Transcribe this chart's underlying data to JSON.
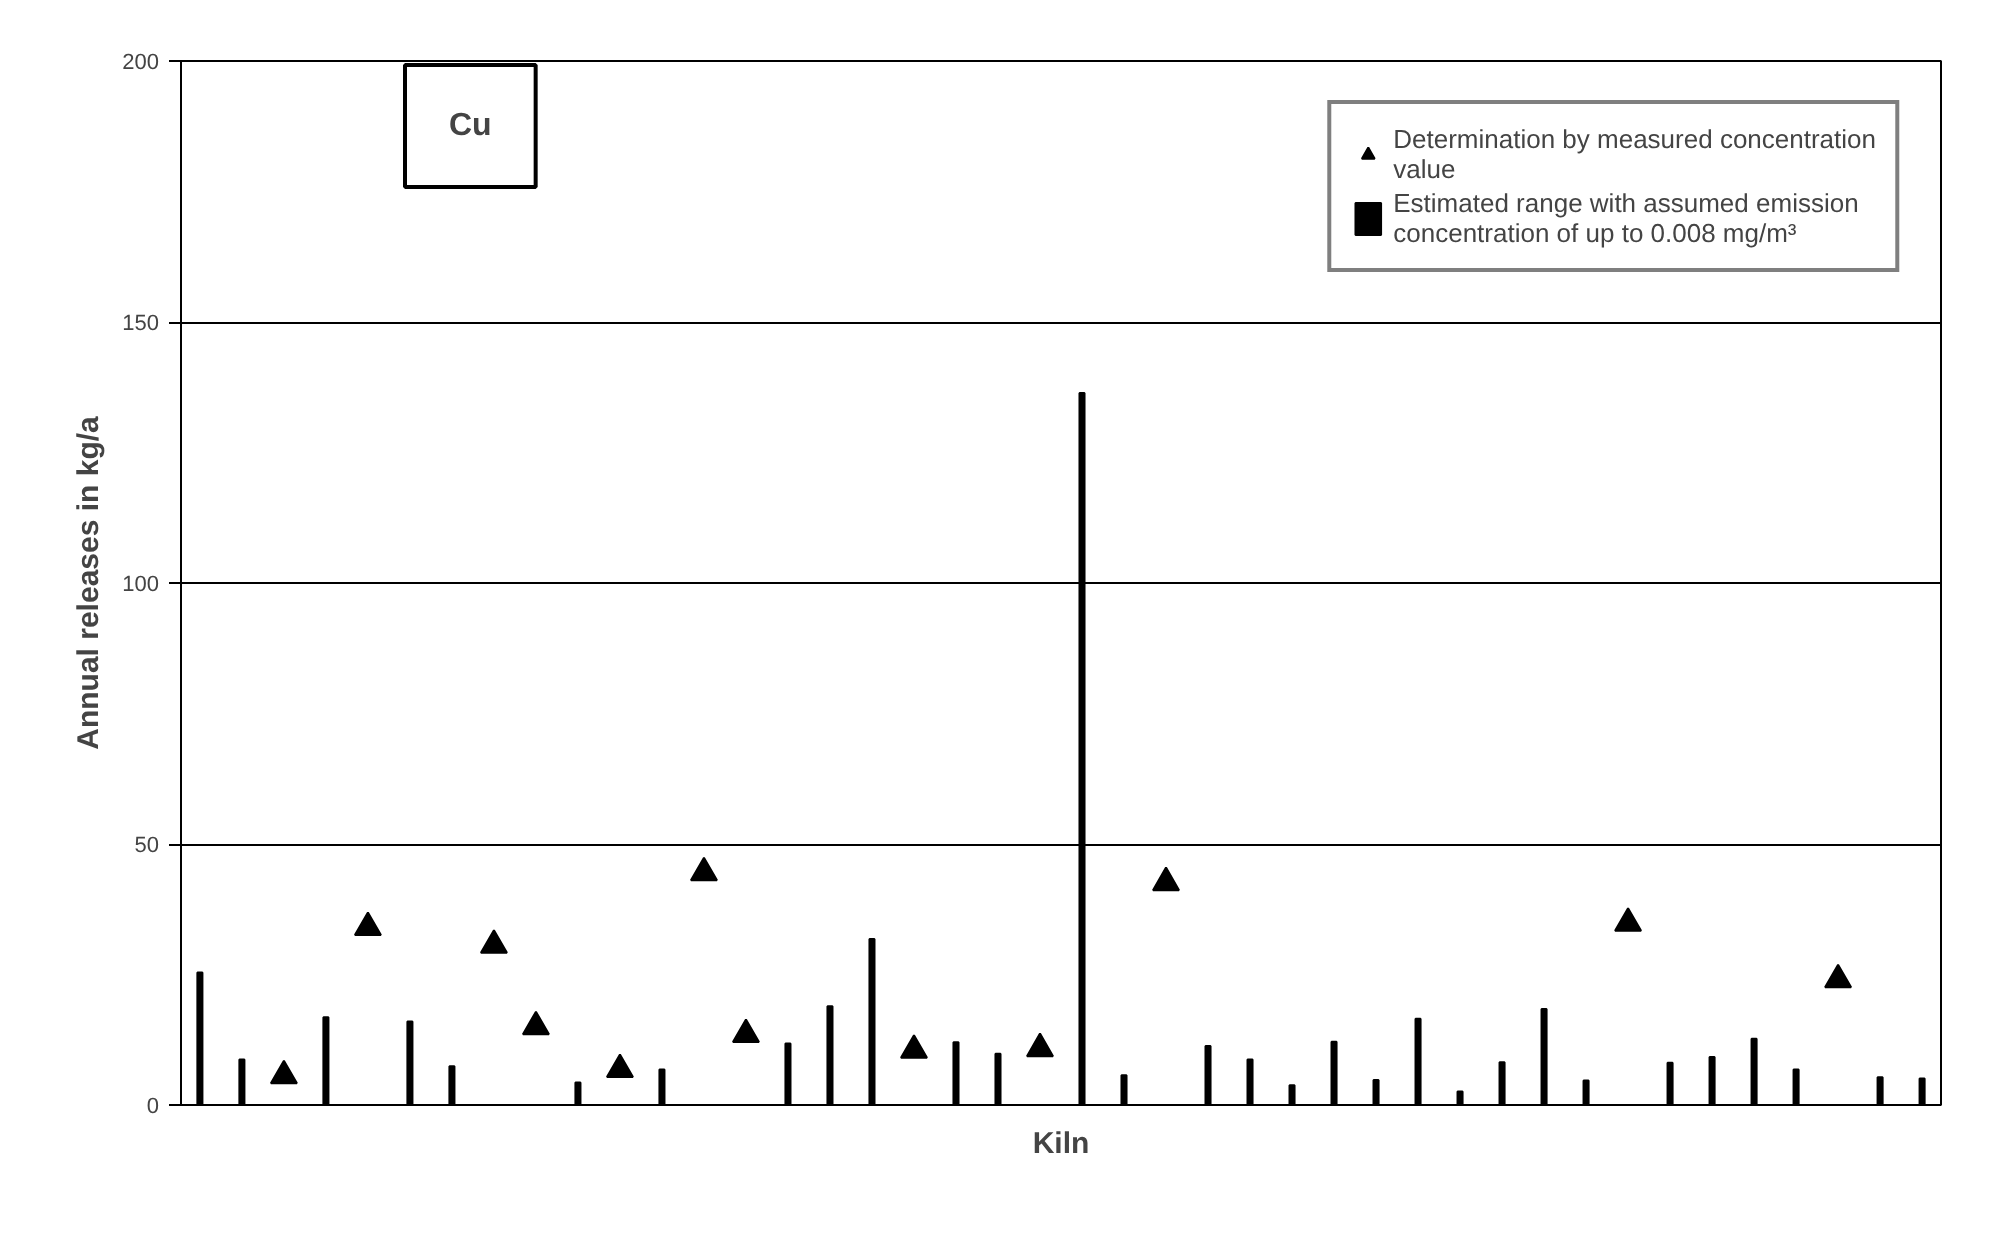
{
  "chart_data": {
    "type": "bar",
    "xlabel": "Kiln",
    "ylabel": "Annual releases in kg/a",
    "annotations": [
      "Cu"
    ],
    "categories": [
      null,
      null,
      null,
      null,
      null,
      null,
      null,
      null,
      null,
      null,
      null,
      null,
      null,
      null,
      null,
      null,
      null,
      null,
      null,
      null,
      null,
      null,
      null,
      null,
      null,
      null,
      null,
      null,
      null,
      null,
      null,
      null,
      null,
      null,
      null,
      null,
      null,
      null,
      null,
      null,
      null,
      null
    ],
    "series": [
      {
        "name": "Determination by measured concentration value",
        "type": "scatter",
        "marker": "triangle",
        "color": "#000000",
        "values": [
          null,
          null,
          5.6,
          null,
          34,
          null,
          null,
          30.6,
          15,
          null,
          6.8,
          null,
          44.5,
          13.5,
          null,
          null,
          null,
          10.5,
          null,
          null,
          10.8,
          null,
          null,
          42.6,
          null,
          null,
          null,
          null,
          null,
          null,
          null,
          null,
          null,
          null,
          34.8,
          null,
          null,
          null,
          null,
          24,
          null,
          null
        ]
      },
      {
        "name": "Estimated range with assumed emission concentration of up to 0.008 mg/m³",
        "color": "#000000",
        "values": [
          25.4,
          8.7,
          null,
          16.8,
          null,
          16,
          7.4,
          null,
          null,
          4.3,
          null,
          6.8,
          null,
          null,
          11.8,
          18.9,
          31.8,
          null,
          12,
          9.8,
          null,
          136.4,
          5.7,
          null,
          11.3,
          8.7,
          3.8,
          12.1,
          4.8,
          16.5,
          2.6,
          8.2,
          18.4,
          4.7,
          null,
          8.1,
          9.2,
          12.7,
          6.8,
          null,
          5.3,
          5.1
        ]
      }
    ],
    "ylim": [
      0,
      200
    ],
    "yticks": [
      0,
      50,
      100,
      150,
      200
    ],
    "grid": "y",
    "legend": "top right",
    "tick_labels": "y"
  }
}
